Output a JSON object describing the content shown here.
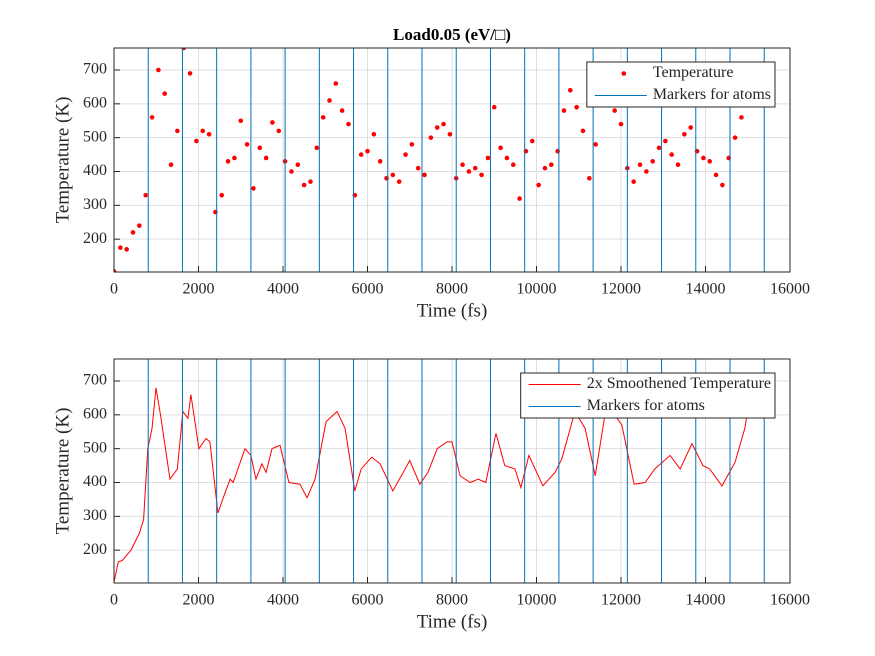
{
  "chart_data": [
    {
      "type": "scatter",
      "title": "Load0.05 (eV/□)",
      "xlabel": "Time (fs)",
      "ylabel": "Temperature (K)",
      "xlim": [
        0,
        16000
      ],
      "ylim": [
        103,
        765
      ],
      "xticks": [
        0,
        2000,
        4000,
        6000,
        8000,
        10000,
        12000,
        14000,
        16000
      ],
      "yticks": [
        200,
        300,
        400,
        500,
        600,
        700
      ],
      "grid": true,
      "legend": "northeast",
      "series": [
        {
          "name": "Temperature",
          "color": "#ff0000",
          "x": [
            0,
            150,
            300,
            450,
            600,
            750,
            900,
            1050,
            1200,
            1350,
            1500,
            1650,
            1800,
            1950,
            2100,
            2250,
            2400,
            2550,
            2700,
            2850,
            3000,
            3150,
            3300,
            3450,
            3600,
            3750,
            3900,
            4050,
            4200,
            4350,
            4500,
            4650,
            4800,
            4950,
            5100,
            5250,
            5400,
            5550,
            5700,
            5850,
            6000,
            6150,
            6300,
            6450,
            6600,
            6750,
            6900,
            7050,
            7200,
            7350,
            7500,
            7650,
            7800,
            7950,
            8100,
            8250,
            8400,
            8550,
            8700,
            8850,
            9000,
            9150,
            9300,
            9450,
            9600,
            9750,
            9900,
            10050,
            10200,
            10350,
            10500,
            10650,
            10800,
            10950,
            11100,
            11250,
            11400,
            11550,
            11700,
            11850,
            12000,
            12150,
            12300,
            12450,
            12600,
            12750,
            12900,
            13050,
            13200,
            13350,
            13500,
            13650,
            13800,
            13950,
            14100,
            14250,
            14400,
            14550,
            14700,
            14850
          ],
          "values": [
            105,
            175,
            170,
            220,
            240,
            330,
            560,
            700,
            630,
            420,
            520,
            765,
            690,
            490,
            520,
            510,
            280,
            330,
            430,
            440,
            550,
            480,
            350,
            470,
            440,
            545,
            520,
            430,
            400,
            420,
            360,
            370,
            470,
            560,
            610,
            660,
            580,
            540,
            330,
            450,
            460,
            510,
            430,
            380,
            390,
            370,
            450,
            480,
            410,
            390,
            500,
            530,
            540,
            510,
            380,
            420,
            400,
            410,
            390,
            440,
            590,
            470,
            440,
            420,
            320,
            460,
            490,
            360,
            410,
            420,
            460,
            580,
            640,
            590,
            520,
            380,
            480,
            600,
            610,
            580,
            540,
            410,
            370,
            420,
            400,
            430,
            470,
            490,
            450,
            420,
            510,
            530,
            460,
            440,
            430,
            390,
            360,
            440,
            500,
            560
          ]
        }
      ],
      "markers": {
        "name": "Markers for atoms",
        "color": "#0072bd",
        "x": [
          810,
          1620,
          2430,
          3240,
          4050,
          4860,
          5670,
          6480,
          7290,
          8100,
          8910,
          9720,
          10530,
          11340,
          12150,
          12960,
          13770,
          14580,
          15390
        ]
      }
    },
    {
      "type": "line",
      "xlabel": "Time (fs)",
      "ylabel": "Temperature (K)",
      "xlim": [
        0,
        16000
      ],
      "ylim": [
        103,
        765
      ],
      "xticks": [
        0,
        2000,
        4000,
        6000,
        8000,
        10000,
        12000,
        14000,
        16000
      ],
      "yticks": [
        200,
        300,
        400,
        500,
        600,
        700
      ],
      "grid": true,
      "legend": "northeast",
      "series": [
        {
          "name": "2x Smoothened Temperature",
          "color": "#ff0000",
          "x": [
            0,
            100,
            200,
            400,
            600,
            700,
            800,
            900,
            994,
            1100,
            1325,
            1500,
            1630,
            1750,
            1820,
            2010,
            2180,
            2270,
            2460,
            2600,
            2750,
            2820,
            3100,
            3240,
            3360,
            3500,
            3600,
            3740,
            3930,
            4140,
            4400,
            4570,
            4760,
            5020,
            5280,
            5470,
            5700,
            5850,
            6100,
            6300,
            6600,
            6890,
            7000,
            7240,
            7430,
            7650,
            7880,
            8000,
            8190,
            8430,
            8620,
            8800,
            9040,
            9250,
            9490,
            9630,
            9820,
            10150,
            10440,
            10600,
            10910,
            11150,
            11390,
            11620,
            11790,
            12020,
            12310,
            12570,
            12800,
            13160,
            13400,
            13680,
            13940,
            14100,
            14390,
            14700,
            14930,
            15120
          ],
          "values": [
            105,
            165,
            170,
            200,
            250,
            290,
            500,
            560,
            680,
            600,
            410,
            440,
            610,
            590,
            660,
            500,
            530,
            520,
            310,
            360,
            410,
            400,
            500,
            480,
            410,
            455,
            430,
            500,
            510,
            400,
            395,
            355,
            410,
            580,
            610,
            560,
            375,
            440,
            475,
            455,
            375,
            440,
            465,
            395,
            430,
            500,
            520,
            520,
            420,
            400,
            410,
            400,
            545,
            450,
            440,
            385,
            480,
            390,
            430,
            470,
            610,
            560,
            420,
            600,
            610,
            570,
            395,
            400,
            440,
            480,
            440,
            515,
            450,
            440,
            390,
            460,
            560,
            700
          ]
        }
      ],
      "markers": {
        "name": "Markers for atoms",
        "color": "#0072bd",
        "x": [
          810,
          1620,
          2430,
          3240,
          4050,
          4860,
          5670,
          6480,
          7290,
          8100,
          8910,
          9720,
          10530,
          11340,
          12150,
          12960,
          13770,
          14580,
          15390
        ]
      }
    }
  ]
}
